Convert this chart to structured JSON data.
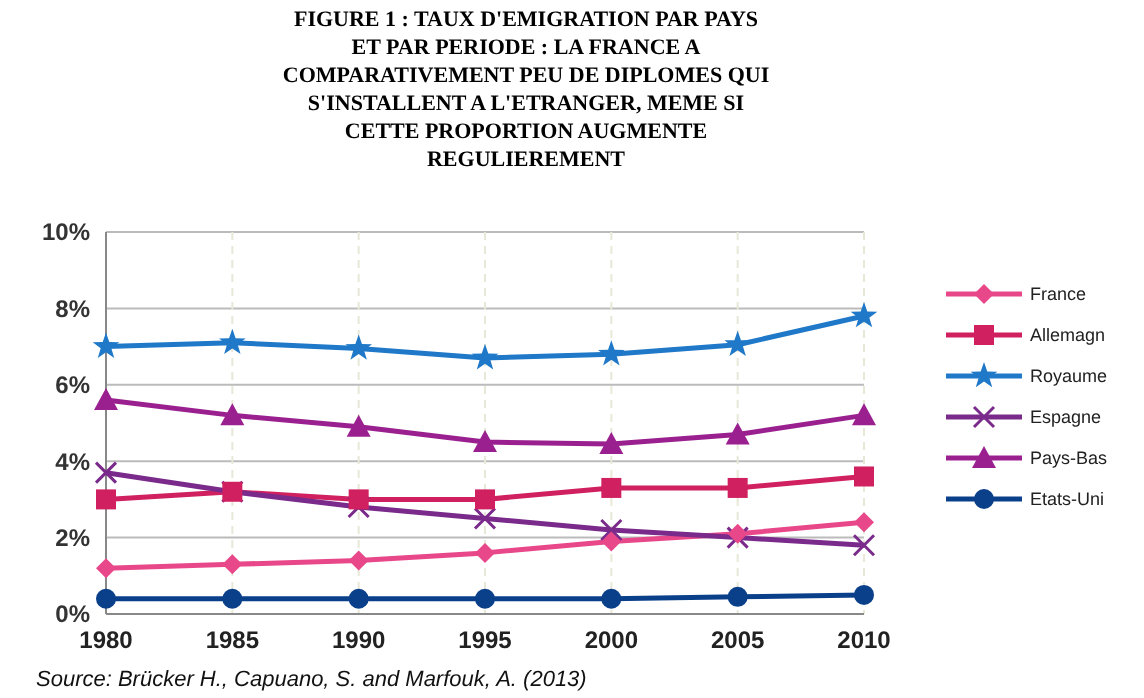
{
  "chart_data": {
    "type": "line",
    "title": "FIGURE 1 : TAUX D'EMIGRATION PAR PAYS\nET PAR PERIODE : LA FRANCE A\nCOMPARATIVEMENT PEU DE DIPLOMES QUI\nS'INSTALLENT A L'ETRANGER, MEME SI\nCETTE PROPORTION AUGMENTE\nREGULIEREMENT",
    "x": [
      1980,
      1985,
      1990,
      1995,
      2000,
      2005,
      2010
    ],
    "xlim": [
      1980,
      2010
    ],
    "xticks": [
      1980,
      1985,
      1990,
      1995,
      2000,
      2005,
      2010
    ],
    "ylim": [
      0,
      10
    ],
    "yticks": [
      {
        "value": 0,
        "label": "0%"
      },
      {
        "value": 2,
        "label": "2%"
      },
      {
        "value": 4,
        "label": "4%"
      },
      {
        "value": 6,
        "label": "6%"
      },
      {
        "value": 8,
        "label": "8%"
      },
      {
        "value": 10,
        "label": "10%"
      }
    ],
    "grid": true,
    "legend": "right",
    "series": [
      {
        "name": "France",
        "color": "#e8488a",
        "marker": "diamond",
        "values": [
          1.2,
          1.3,
          1.4,
          1.6,
          1.9,
          2.1,
          2.4
        ]
      },
      {
        "name": "Allemagn",
        "color": "#d02060",
        "marker": "square",
        "values": [
          3.0,
          3.2,
          3.0,
          3.0,
          3.3,
          3.3,
          3.6
        ]
      },
      {
        "name": "Royaume",
        "color": "#1f78c8",
        "marker": "star",
        "values": [
          7.0,
          7.1,
          6.95,
          6.7,
          6.8,
          7.05,
          7.8
        ]
      },
      {
        "name": "Espagne",
        "color": "#7a2a8a",
        "marker": "cross",
        "values": [
          3.7,
          3.2,
          2.8,
          2.5,
          2.2,
          2.0,
          1.8
        ]
      },
      {
        "name": "Pays-Bas",
        "color": "#9a2090",
        "marker": "triangle",
        "values": [
          5.6,
          5.2,
          4.9,
          4.5,
          4.45,
          4.7,
          5.2
        ]
      },
      {
        "name": "Etats-Uni",
        "color": "#0a3f8a",
        "marker": "circle",
        "values": [
          0.4,
          0.4,
          0.4,
          0.4,
          0.4,
          0.45,
          0.5
        ]
      }
    ],
    "annotations": [
      "Source:  Brücker H., Capuano, S. and Marfouk, A. (2013)"
    ]
  }
}
